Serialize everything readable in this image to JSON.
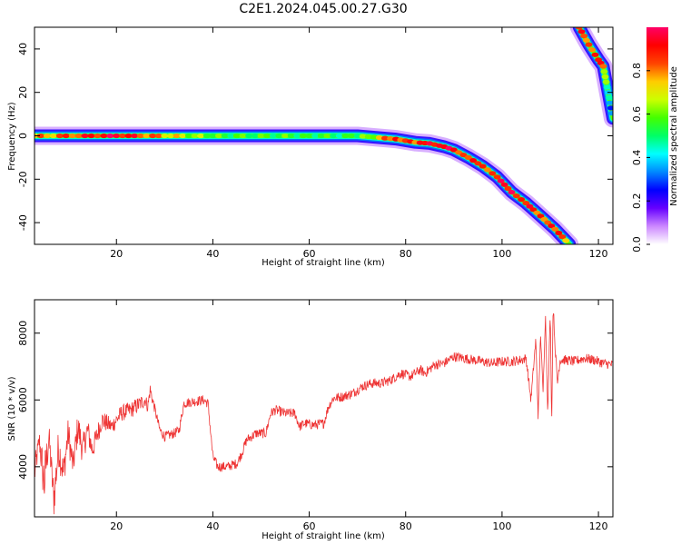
{
  "figure": {
    "title": "C2E1.2024.045.00.27.G30"
  },
  "colors": {
    "snr_line": "#ee3333",
    "colormap": [
      "#ffffff",
      "#cc88ff",
      "#6600ff",
      "#0000ff",
      "#0088ff",
      "#00ffff",
      "#00ff66",
      "#44ff00",
      "#ccff00",
      "#ffcc00",
      "#ff4400",
      "#ff0000",
      "#ff0066"
    ]
  },
  "chart_data": [
    {
      "type": "heatmap",
      "xlabel": "Height of straight line (km)",
      "ylabel": "Frequency (Hz)",
      "xlim": [
        3,
        123
      ],
      "ylim": [
        -50,
        50
      ],
      "xticks": [
        20,
        40,
        60,
        80,
        100,
        120
      ],
      "yticks": [
        -40,
        -20,
        0,
        20,
        40
      ],
      "colorbar": {
        "label": "Normalized spectral amplitude",
        "range": [
          0,
          1
        ],
        "ticks": [
          0.0,
          0.2,
          0.4,
          0.6,
          0.8
        ]
      },
      "ridge_segments": [
        {
          "name": "main",
          "points": [
            [
              3,
              0
            ],
            [
              20,
              0
            ],
            [
              40,
              0
            ],
            [
              60,
              0
            ],
            [
              70,
              0
            ],
            [
              78,
              -1.5
            ],
            [
              82,
              -3
            ],
            [
              85,
              -3.5
            ],
            [
              88,
              -5
            ],
            [
              90,
              -6.5
            ],
            [
              93,
              -10
            ],
            [
              96,
              -14
            ],
            [
              99,
              -19
            ],
            [
              102,
              -26
            ],
            [
              105,
              -31
            ],
            [
              108,
              -37
            ],
            [
              111,
              -43
            ],
            [
              114,
              -50
            ]
          ],
          "amplitude": [
            0.75,
            0.95,
            0.55,
            0.55,
            0.5,
            0.9,
            0.8,
            0.95,
            0.95,
            0.9,
            0.85,
            0.85,
            0.9,
            0.95,
            0.9,
            0.85,
            0.85,
            0.8
          ]
        },
        {
          "name": "aliased",
          "points": [
            [
              116,
              50
            ],
            [
              118,
              42
            ],
            [
              120,
              35
            ],
            [
              121,
              32
            ],
            [
              122,
              20
            ],
            [
              123,
              8
            ]
          ],
          "amplitude": [
            0.85,
            0.85,
            0.9,
            0.8,
            0.4,
            0.3
          ]
        }
      ]
    },
    {
      "type": "line",
      "xlabel": "Height of straight line (km)",
      "ylabel": "SNR (10 * v/v)",
      "xlim": [
        3,
        123
      ],
      "ylim": [
        2500,
        9000
      ],
      "xticks": [
        20,
        40,
        60,
        80,
        100,
        120
      ],
      "yticks": [
        4000,
        6000,
        8000
      ],
      "series": [
        {
          "x": [
            3,
            4,
            5,
            6,
            7,
            8,
            9,
            10,
            11,
            12,
            13,
            14,
            15,
            17,
            19,
            21,
            23,
            25,
            26,
            26.5,
            27,
            28,
            29,
            30,
            32,
            33,
            34,
            36,
            38,
            39,
            40,
            41,
            43,
            45,
            46,
            47,
            49,
            51,
            52,
            53,
            55,
            57,
            58,
            59,
            61,
            63,
            64,
            65,
            67,
            69,
            71,
            73,
            75,
            77,
            79,
            81,
            83,
            84,
            86,
            88,
            90,
            92,
            94,
            96,
            98,
            100,
            102,
            104,
            105,
            106,
            107,
            107.5,
            108,
            108.5,
            109,
            109.5,
            110,
            110.3,
            110.6,
            111,
            111.5,
            112,
            113,
            115,
            117,
            119,
            121,
            123
          ],
          "values": [
            3800,
            4800,
            3500,
            4900,
            3000,
            4600,
            3800,
            5000,
            4000,
            5200,
            4500,
            5100,
            4500,
            5400,
            5200,
            5600,
            5700,
            5900,
            6000,
            5800,
            6300,
            5700,
            5100,
            4900,
            5000,
            5100,
            5900,
            5950,
            6000,
            5900,
            4300,
            4000,
            4000,
            4100,
            4400,
            4800,
            5000,
            5000,
            5600,
            5700,
            5600,
            5600,
            5200,
            5300,
            5250,
            5300,
            5800,
            6050,
            6100,
            6200,
            6400,
            6500,
            6500,
            6600,
            6800,
            6700,
            6900,
            6800,
            7050,
            7100,
            7300,
            7250,
            7200,
            7150,
            7100,
            7150,
            7150,
            7200,
            7250,
            6000,
            7800,
            5500,
            8000,
            6200,
            8600,
            5600,
            8700,
            5300,
            8900,
            7600,
            6500,
            7200,
            7200,
            7150,
            7250,
            7200,
            7100,
            7050
          ],
          "noise": [
            500,
            300,
            900,
            400,
            600,
            600,
            500,
            500,
            400,
            500,
            450,
            400,
            350,
            300,
            250,
            250,
            250,
            250,
            200,
            200,
            200,
            150,
            150,
            150,
            150,
            150,
            150,
            150,
            150,
            150,
            150,
            150,
            150,
            150,
            150,
            150,
            150,
            150,
            150,
            150,
            150,
            150,
            150,
            150,
            150,
            150,
            150,
            150,
            150,
            150,
            150,
            150,
            150,
            150,
            150,
            150,
            150,
            150,
            150,
            150,
            150,
            150,
            150,
            150,
            150,
            150,
            150,
            150,
            150,
            150,
            150,
            150,
            150,
            150,
            150,
            150,
            150,
            150,
            150,
            150,
            150,
            150,
            150,
            150,
            150,
            150,
            150,
            150
          ]
        }
      ]
    }
  ]
}
